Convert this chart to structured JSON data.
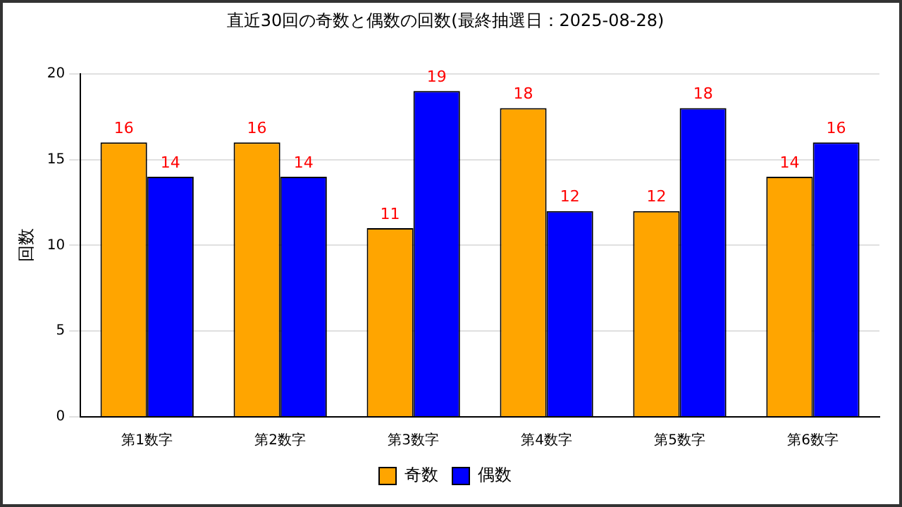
{
  "chart_data": {
    "type": "bar",
    "title": "直近30回の奇数と偶数の回数(最終抽選日：2025-08-28)",
    "ylabel": "回数",
    "categories": [
      "第1数字",
      "第2数字",
      "第3数字",
      "第4数字",
      "第5数字",
      "第6数字"
    ],
    "series": [
      {
        "name": "奇数",
        "color": "#ffa500",
        "values": [
          16,
          16,
          11,
          18,
          12,
          14
        ]
      },
      {
        "name": "偶数",
        "color": "#0000ff",
        "values": [
          14,
          14,
          19,
          12,
          18,
          16
        ]
      }
    ],
    "ylim": [
      0,
      20
    ],
    "yticks": [
      0,
      5,
      10,
      15,
      20
    ],
    "grid": "y",
    "legend": "bottom",
    "data_labels": true
  }
}
